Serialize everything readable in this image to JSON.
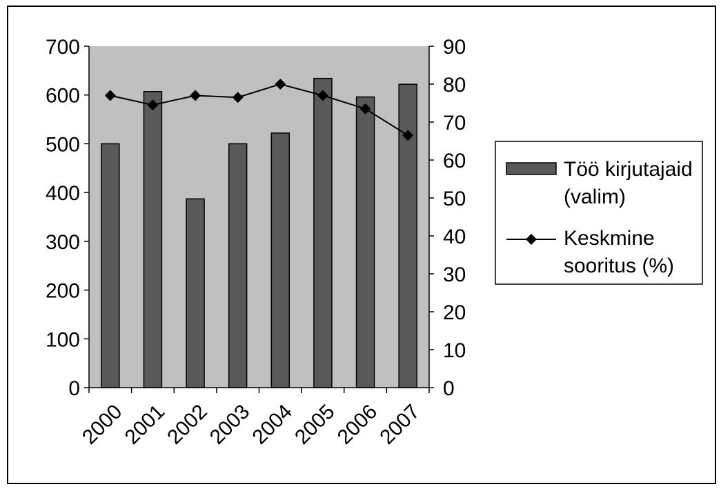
{
  "chart_data": {
    "type": "bar",
    "categories": [
      "2000",
      "2001",
      "2002",
      "2003",
      "2004",
      "2005",
      "2006",
      "2007"
    ],
    "series": [
      {
        "name": "Töö kirjutajaid (valim)",
        "type": "bar",
        "axis": "left",
        "color": "#595959",
        "values": [
          500,
          607,
          387,
          500,
          522,
          634,
          596,
          622
        ]
      },
      {
        "name": "Keskmine sooritus (%)",
        "type": "line",
        "axis": "right",
        "color": "#000000",
        "marker": "diamond",
        "values": [
          77,
          74.5,
          77,
          76.5,
          80,
          77,
          73.5,
          66.5
        ]
      }
    ],
    "y_left": {
      "min": 0,
      "max": 700,
      "ticks": [
        "0",
        "100",
        "200",
        "300",
        "400",
        "500",
        "600",
        "700"
      ]
    },
    "y_right": {
      "min": 0,
      "max": 90,
      "ticks": [
        "0",
        "10",
        "20",
        "30",
        "40",
        "50",
        "60",
        "70",
        "80",
        "90"
      ]
    },
    "plot_background": "#c0c0c0",
    "grid": false,
    "legend_position": "right",
    "legend": {
      "bar_label_lines": [
        "Töö kirjutajaid",
        "(valim)"
      ],
      "line_label_lines": [
        "Keskmine",
        "sooritus (%)"
      ]
    }
  }
}
